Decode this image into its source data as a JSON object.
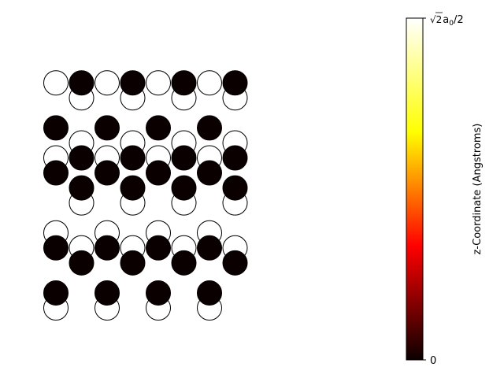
{
  "chart_data": {
    "type": "scatter",
    "title": "",
    "xlabel": "",
    "ylabel": "",
    "axes_visible": false,
    "marker": "circle",
    "marker_edge_color": "#000000",
    "colormap": "hot",
    "colormap_stops": [
      "#0b0000",
      "#ff0000",
      "#ffff00",
      "#ffffff"
    ],
    "series": [
      {
        "z": 1.0,
        "fill": "#ffffff",
        "points": [
          [
            0,
            0
          ],
          [
            2,
            0
          ],
          [
            4,
            0
          ],
          [
            6,
            0
          ],
          [
            0,
            5
          ],
          [
            2,
            5
          ],
          [
            4,
            5
          ],
          [
            6,
            5
          ],
          [
            0,
            10
          ],
          [
            2,
            10
          ],
          [
            4,
            10
          ],
          [
            6,
            10
          ],
          [
            0,
            15
          ],
          [
            2,
            15
          ],
          [
            4,
            15
          ],
          [
            6,
            15
          ],
          [
            1,
            4
          ],
          [
            3,
            4
          ],
          [
            5,
            4
          ],
          [
            7,
            4
          ],
          [
            1,
            7
          ],
          [
            3,
            7
          ],
          [
            5,
            7
          ],
          [
            7,
            7
          ],
          [
            1,
            11
          ],
          [
            3,
            11
          ],
          [
            5,
            11
          ],
          [
            7,
            11
          ],
          [
            1,
            14
          ],
          [
            3,
            14
          ],
          [
            5,
            14
          ],
          [
            7,
            14
          ]
        ]
      },
      {
        "z": 0.0,
        "fill": "#0b0000",
        "points": [
          [
            0,
            1
          ],
          [
            2,
            1
          ],
          [
            4,
            1
          ],
          [
            6,
            1
          ],
          [
            0,
            4
          ],
          [
            2,
            4
          ],
          [
            4,
            4
          ],
          [
            6,
            4
          ],
          [
            0,
            9
          ],
          [
            2,
            9
          ],
          [
            4,
            9
          ],
          [
            6,
            9
          ],
          [
            0,
            12
          ],
          [
            2,
            12
          ],
          [
            4,
            12
          ],
          [
            6,
            12
          ],
          [
            1,
            3
          ],
          [
            3,
            3
          ],
          [
            5,
            3
          ],
          [
            7,
            3
          ],
          [
            1,
            8
          ],
          [
            3,
            8
          ],
          [
            5,
            8
          ],
          [
            7,
            8
          ],
          [
            1,
            10
          ],
          [
            3,
            10
          ],
          [
            5,
            10
          ],
          [
            7,
            10
          ],
          [
            1,
            15
          ],
          [
            3,
            15
          ],
          [
            5,
            15
          ],
          [
            7,
            15
          ]
        ]
      }
    ],
    "colorbar": {
      "label": "z-Coordinate (Angstroms)",
      "min_label": "0",
      "max_label_parts": [
        "√2",
        "a",
        "0",
        "/2"
      ],
      "range": [
        0,
        1
      ]
    }
  }
}
